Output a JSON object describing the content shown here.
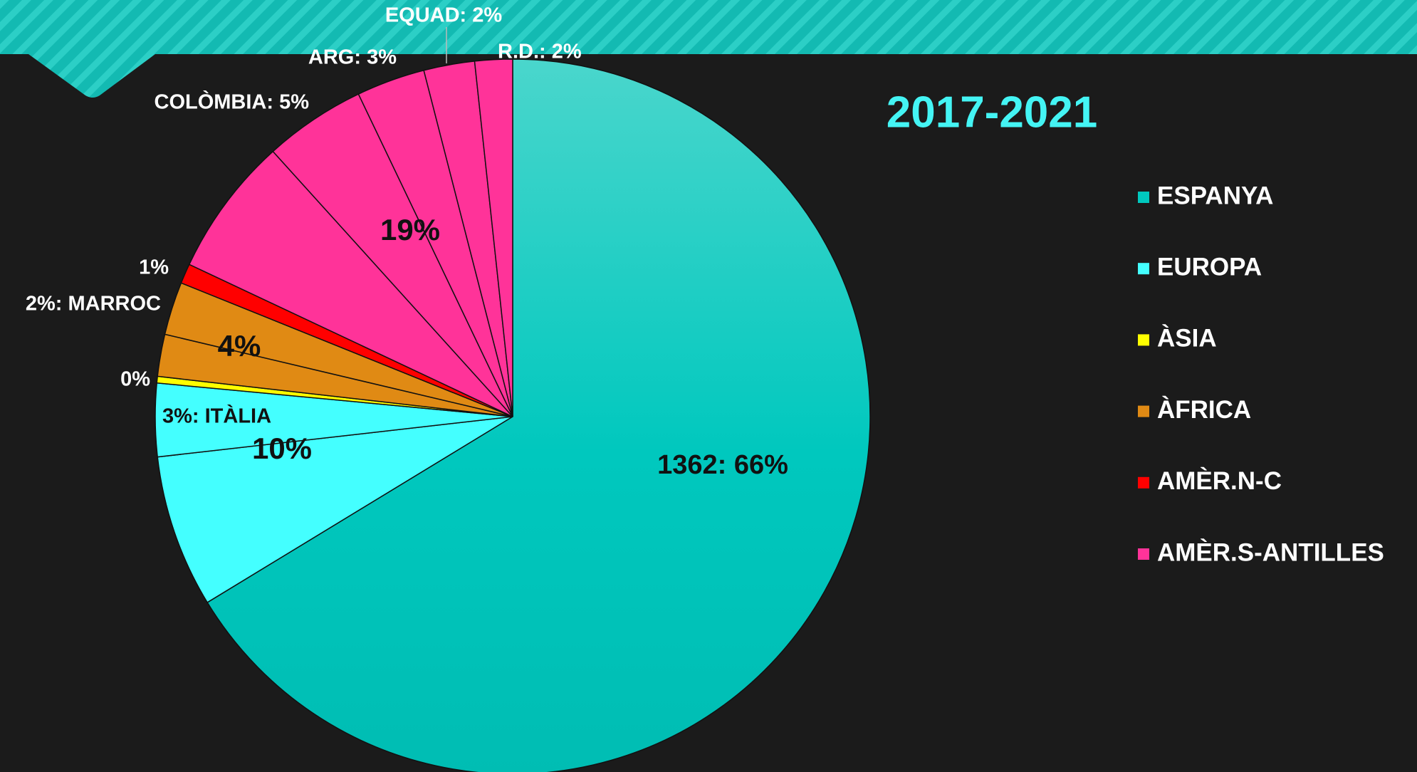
{
  "chart_data": {
    "type": "pie",
    "title": "2017-2021",
    "series": [
      {
        "name": "ESPANYA",
        "color": "#00c8be",
        "values": [
          66.3
        ],
        "value_labels": [
          "1362: 66%"
        ]
      },
      {
        "name": "EUROPA",
        "color": "#44ffff",
        "values": [
          6.9,
          3.3
        ],
        "value_labels": [
          null,
          "3%: ITÀLIA"
        ],
        "total": 10,
        "total_label": "10%"
      },
      {
        "name": "ÀSIA",
        "color": "#ffff00",
        "values": [
          0.3
        ],
        "value_labels": [
          "0%"
        ]
      },
      {
        "name": "ÀFRICA",
        "color": "#e08a14",
        "values": [
          1.9,
          2.4
        ],
        "value_labels": [
          null,
          "2%: MARROC"
        ],
        "total": 4,
        "total_label": "4%"
      },
      {
        "name": "AMÈR.N-C",
        "color": "#ff0000",
        "values": [
          0.9
        ],
        "value_labels": [
          "1%"
        ]
      },
      {
        "name": "AMÈR.S-ANTILLES",
        "color": "#ff3399",
        "values": [
          6.3,
          4.6,
          3.1,
          2.3,
          1.7
        ],
        "value_labels": [
          null,
          "COLÒMBIA: 5%",
          "ARG: 3%",
          "EQUAD: 2%",
          "R.D.: 2%"
        ],
        "total": 19,
        "total_label": "19%"
      }
    ]
  }
}
